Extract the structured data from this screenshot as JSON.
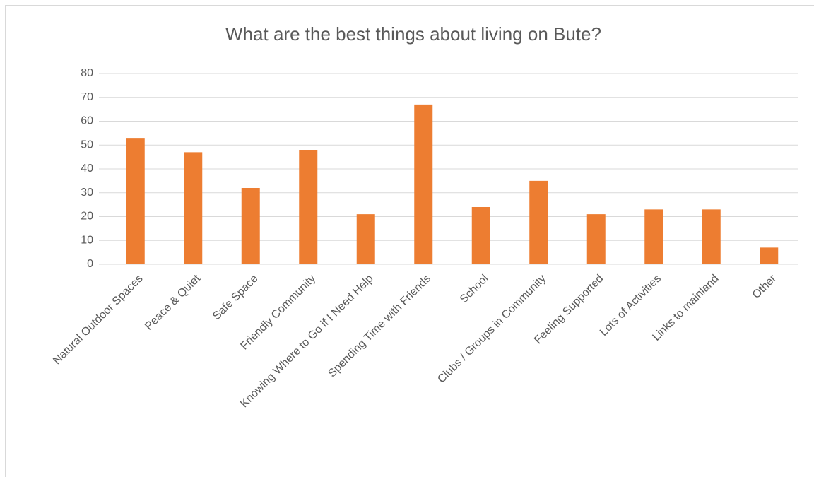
{
  "chart_data": {
    "type": "bar",
    "title": "What are the best things about living on Bute?",
    "categories": [
      "Natural Outdoor Spaces",
      "Peace & Quiet",
      "Safe Space",
      "Friendly Community",
      "Knowing Where to Go if I Need Help",
      "Spending Time with Friends",
      "School",
      "Clubs / Groups in Community",
      "Feeling Supported",
      "Lots of Activities",
      "Links to mainland",
      "Other"
    ],
    "values": [
      53,
      47,
      32,
      48,
      21,
      67,
      24,
      35,
      21,
      23,
      23,
      7
    ],
    "color": "#ed7d31",
    "ylim": [
      0,
      80
    ],
    "yticks": [
      0,
      10,
      20,
      30,
      40,
      50,
      60,
      70,
      80
    ],
    "grid": true
  }
}
